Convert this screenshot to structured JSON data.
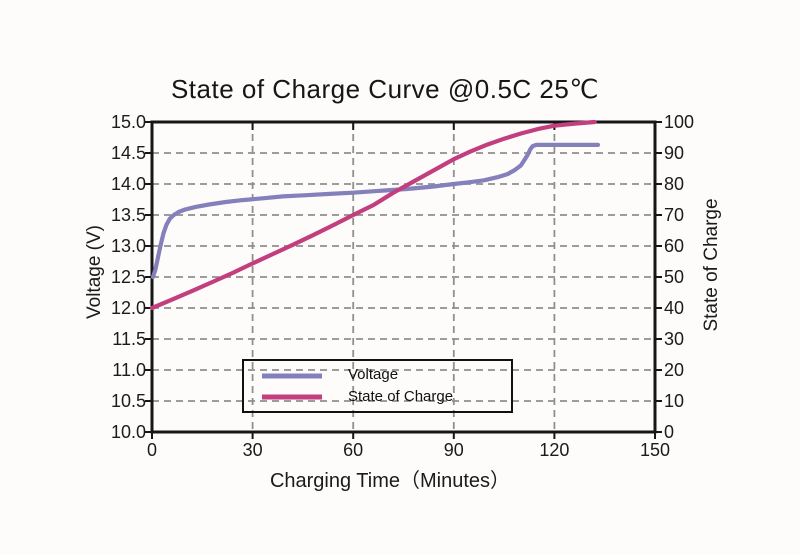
{
  "title": "State of Charge Curve @0.5C 25℃",
  "colors": {
    "voltage_line": "#8480bb",
    "soc_line": "#c23e7e",
    "grid": "#8f8f8f",
    "axis": "#161616",
    "background": "#fdfcfa",
    "text": "#1b1b1b"
  },
  "chart_data": {
    "type": "line",
    "title": "State of Charge Curve @0.5C 25℃",
    "xlabel": "Charging Time（Minutes）",
    "ylabel_left": "Voltage (V)",
    "ylabel_right": "State of Charge",
    "xlim": [
      0,
      150
    ],
    "ylim_left": [
      10.0,
      15.0
    ],
    "ylim_right": [
      0,
      100
    ],
    "xticks": [
      "0",
      "30",
      "60",
      "90",
      "120",
      "150"
    ],
    "yticks_left": [
      "15.0",
      "14.5",
      "14.0",
      "13.5",
      "13.0",
      "12.5",
      "12.0",
      "11.5",
      "11.0",
      "10.5",
      "10.0"
    ],
    "yticks_right": [
      "100",
      "90",
      "80",
      "70",
      "60",
      "50",
      "40",
      "30",
      "20",
      "10",
      "0"
    ],
    "grid": true,
    "grid_style": "dashed",
    "legend": {
      "position": "lower-left-inside",
      "border": true,
      "labels": [
        "Voltage",
        "State of Charge"
      ]
    },
    "series": [
      {
        "name": "Voltage",
        "axis": "left",
        "color": "#8480bb",
        "units": "V",
        "points": [
          [
            0.3,
            12.5
          ],
          [
            1,
            12.62
          ],
          [
            1.8,
            12.82
          ],
          [
            2.6,
            13.02
          ],
          [
            3.4,
            13.2
          ],
          [
            4.3,
            13.34
          ],
          [
            5.3,
            13.44
          ],
          [
            6.5,
            13.5
          ],
          [
            8,
            13.55
          ],
          [
            10,
            13.59
          ],
          [
            13,
            13.63
          ],
          [
            17,
            13.67
          ],
          [
            22,
            13.71
          ],
          [
            27,
            13.74
          ],
          [
            33,
            13.77
          ],
          [
            39,
            13.8
          ],
          [
            46,
            13.82
          ],
          [
            53,
            13.84
          ],
          [
            60,
            13.86
          ],
          [
            68,
            13.89
          ],
          [
            76,
            13.92
          ],
          [
            84,
            13.96
          ],
          [
            90,
            14.0
          ],
          [
            95,
            14.03
          ],
          [
            99,
            14.06
          ],
          [
            103,
            14.11
          ],
          [
            106,
            14.16
          ],
          [
            108,
            14.22
          ],
          [
            110,
            14.3
          ],
          [
            111,
            14.38
          ],
          [
            112,
            14.47
          ],
          [
            112.8,
            14.56
          ],
          [
            113.5,
            14.61
          ],
          [
            114.5,
            14.63
          ],
          [
            133,
            14.63
          ]
        ]
      },
      {
        "name": "State of Charge",
        "axis": "right",
        "color": "#c23e7e",
        "units": "%",
        "points": [
          [
            0,
            40
          ],
          [
            6,
            42.7
          ],
          [
            12,
            45.5
          ],
          [
            18,
            48.4
          ],
          [
            24,
            51.3
          ],
          [
            30,
            54.4
          ],
          [
            36,
            57.4
          ],
          [
            42,
            60.4
          ],
          [
            48,
            63.5
          ],
          [
            54,
            66.7
          ],
          [
            60,
            70
          ],
          [
            66,
            73.2
          ],
          [
            72,
            77.2
          ],
          [
            78,
            80.8
          ],
          [
            84,
            84.4
          ],
          [
            90,
            88
          ],
          [
            95,
            90.5
          ],
          [
            100,
            92.7
          ],
          [
            105,
            94.6
          ],
          [
            110,
            96.3
          ],
          [
            115,
            97.7
          ],
          [
            120,
            98.8
          ],
          [
            126,
            99.5
          ],
          [
            132,
            100
          ]
        ]
      }
    ]
  }
}
